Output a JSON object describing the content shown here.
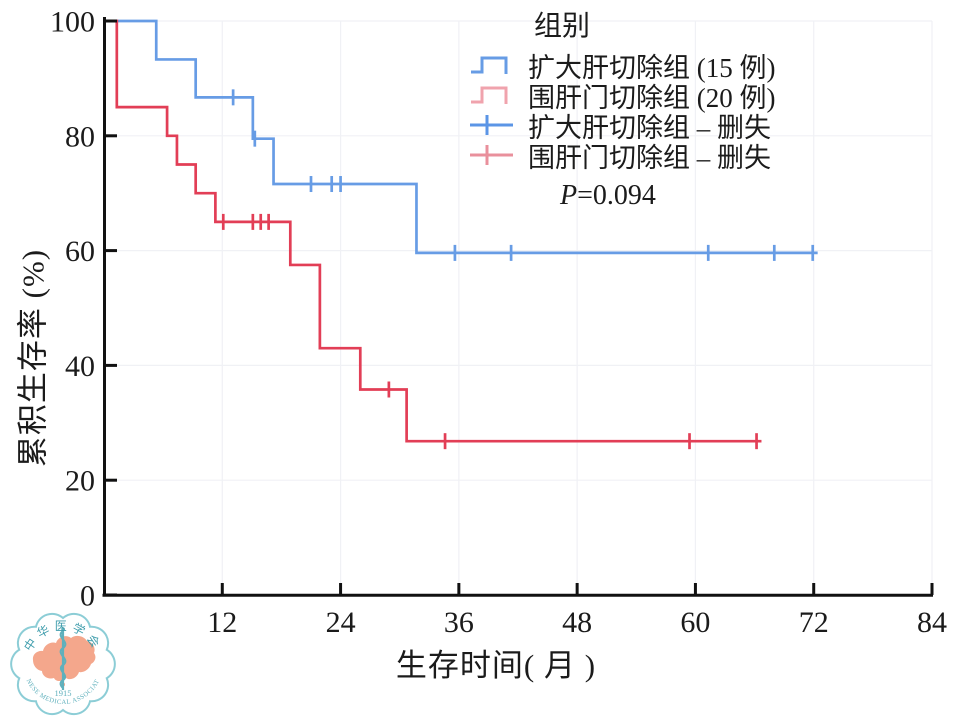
{
  "chart_data": {
    "type": "line",
    "subtype": "kaplan-meier-step",
    "xlabel": "生存时间( 月 )",
    "ylabel": "累积生存率 (%)",
    "xlim": [
      0,
      84
    ],
    "ylim": [
      0,
      100
    ],
    "xticks": [
      12,
      24,
      36,
      48,
      60,
      72,
      84
    ],
    "yticks": [
      0,
      20,
      40,
      60,
      80,
      100
    ],
    "grid": "faint",
    "legend_title": "组别",
    "legend_position": "top-right",
    "series": [
      {
        "name": "扩大肝切除组 (15 例)",
        "censor_label": "扩大肝切除组 – 删失",
        "color": "#679ce5",
        "legend_color": "#679ce5",
        "censor_legend_color": "#5b95e6",
        "steps": [
          [
            0,
            100
          ],
          [
            5.3,
            93.3
          ],
          [
            9.3,
            86.7
          ],
          [
            15.1,
            79.5
          ],
          [
            17.2,
            71.6
          ],
          [
            31.7,
            59.6
          ]
        ],
        "end_x": 72.4,
        "censors": [
          [
            13.1,
            86.7
          ],
          [
            15.3,
            79.5
          ],
          [
            21.0,
            71.6
          ],
          [
            23.1,
            71.6
          ],
          [
            24.0,
            71.6
          ],
          [
            35.6,
            59.6
          ],
          [
            41.3,
            59.6
          ],
          [
            61.3,
            59.6
          ],
          [
            68.0,
            59.6
          ],
          [
            71.9,
            59.6
          ]
        ]
      },
      {
        "name": "围肝门切除组 (20 例)",
        "censor_label": "围肝门切除组 – 删失",
        "color": "#e23e56",
        "legend_color": "#f0a3ad",
        "censor_legend_color": "#e9909c",
        "steps": [
          [
            0,
            100
          ],
          [
            1.3,
            85
          ],
          [
            6.4,
            80
          ],
          [
            7.4,
            75
          ],
          [
            9.3,
            70
          ],
          [
            11.3,
            65
          ],
          [
            18.9,
            57.5
          ],
          [
            21.9,
            43
          ],
          [
            26.0,
            35.8
          ],
          [
            30.7,
            26.8
          ]
        ],
        "end_x": 66.7,
        "censors": [
          [
            12.1,
            65
          ],
          [
            15.1,
            65
          ],
          [
            15.9,
            65
          ],
          [
            16.7,
            65
          ],
          [
            28.9,
            35.8
          ],
          [
            34.6,
            26.8
          ],
          [
            59.4,
            26.8
          ],
          [
            66.2,
            26.8
          ]
        ]
      }
    ]
  },
  "stats": {
    "p_symbol": "P",
    "p_rest": "=0.094"
  },
  "logo": {
    "cn": "中华医学会",
    "en": "CHINESE MEDICAL ASSOCIATION",
    "year": "1915"
  },
  "colors": {
    "axis": "#111111",
    "text": "#1b1b1b",
    "grid": "#f0f1f5",
    "logo_teal": "#5fb0bc",
    "logo_teal_dark": "#3f9dac",
    "logo_border": "#8ccdd6",
    "logo_salmon": "#f4a78c"
  }
}
